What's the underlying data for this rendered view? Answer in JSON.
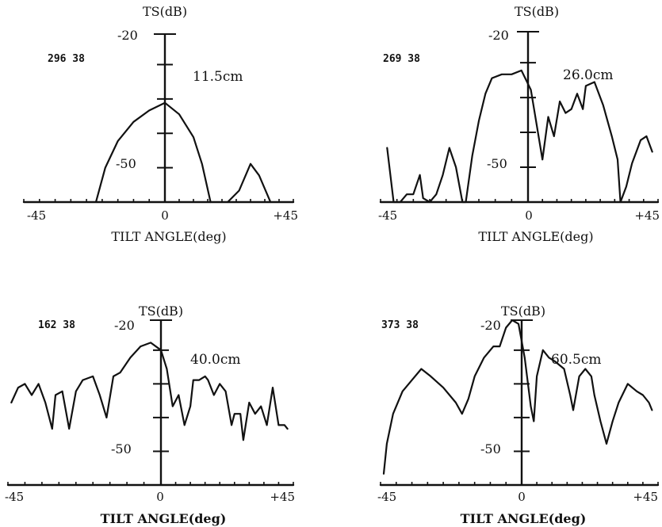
{
  "chart_data": [
    {
      "type": "line",
      "panel": "top-left",
      "ylabel": "TS(dB)",
      "xlabel": "TILT ANGLE(deg)",
      "code": "296 38",
      "size_label": "11.5cm",
      "x_tick_labels": [
        "-45",
        "0",
        "+45"
      ],
      "y_tick_labels": [
        "-20",
        "-50"
      ],
      "xlim": [
        -45,
        45
      ],
      "ylim": [
        -64,
        -20
      ],
      "y_ticks": [
        -20,
        -28,
        -37,
        -46,
        -55
      ],
      "series": [
        {
          "segments": [
            [
              [
                -22,
                -64
              ],
              [
                -19,
                -55
              ],
              [
                -15,
                -48
              ],
              [
                -10,
                -43
              ],
              [
                -5,
                -40
              ],
              [
                0,
                -38
              ],
              [
                5,
                -41
              ],
              [
                10,
                -47
              ],
              [
                13,
                -54
              ],
              [
                16,
                -64
              ]
            ],
            [
              [
                22,
                -64
              ],
              [
                26,
                -61
              ],
              [
                30,
                -54
              ],
              [
                33,
                -57
              ],
              [
                37,
                -64
              ]
            ]
          ]
        }
      ]
    },
    {
      "type": "line",
      "panel": "top-right",
      "ylabel": "TS(dB)",
      "xlabel": "TILT ANGLE(deg)",
      "code": "269 38",
      "size_label": "26.0cm",
      "x_tick_labels": [
        "-45",
        "0",
        "+45"
      ],
      "y_tick_labels": [
        "-20",
        "-50"
      ],
      "xlim": [
        -45,
        45
      ],
      "ylim": [
        -64,
        -20
      ],
      "y_ticks": [
        -20,
        -28,
        -37,
        -46,
        -55
      ],
      "series": [
        {
          "segments": [
            [
              [
                -43,
                -50
              ],
              [
                -41,
                -64
              ],
              [
                -39,
                -64
              ],
              [
                -37,
                -62
              ],
              [
                -35,
                -62
              ],
              [
                -33,
                -57
              ],
              [
                -32,
                -63
              ],
              [
                -30,
                -64
              ],
              [
                -28,
                -62
              ],
              [
                -26,
                -57
              ],
              [
                -24,
                -50
              ],
              [
                -22,
                -55
              ],
              [
                -20,
                -64
              ],
              [
                -19,
                -64
              ],
              [
                -17,
                -52
              ],
              [
                -15,
                -43
              ],
              [
                -13,
                -36
              ],
              [
                -11,
                -32
              ],
              [
                -8,
                -31
              ],
              [
                -5,
                -31
              ],
              [
                -2,
                -30
              ],
              [
                1,
                -35
              ],
              [
                3,
                -44
              ],
              [
                5,
                -53
              ],
              [
                7,
                -42
              ],
              [
                9,
                -47
              ],
              [
                11,
                -38
              ],
              [
                13,
                -41
              ],
              [
                15,
                -40
              ],
              [
                17,
                -36
              ],
              [
                19,
                -40
              ],
              [
                20,
                -34
              ],
              [
                23,
                -33
              ],
              [
                26,
                -39
              ],
              [
                29,
                -47
              ],
              [
                31,
                -53
              ],
              [
                32,
                -64
              ],
              [
                34,
                -60
              ],
              [
                36,
                -54
              ],
              [
                39,
                -48
              ],
              [
                41,
                -47
              ],
              [
                43,
                -51
              ]
            ]
          ]
        }
      ]
    },
    {
      "type": "line",
      "panel": "bottom-left",
      "ylabel": "TS(dB)",
      "xlabel": "TILT ANGLE(deg)",
      "code": "162 38",
      "size_label": "40.0cm",
      "x_tick_labels": [
        "-45",
        "0",
        "+45"
      ],
      "y_tick_labels": [
        "-20",
        "-50"
      ],
      "xlim": [
        -45,
        45
      ],
      "ylim": [
        -64,
        -20
      ],
      "y_ticks": [
        -20,
        -28,
        -37,
        -46,
        -55
      ],
      "series": [
        {
          "segments": [
            [
              [
                -44,
                -42
              ],
              [
                -42,
                -38
              ],
              [
                -40,
                -37
              ],
              [
                -38,
                -40
              ],
              [
                -36,
                -37
              ],
              [
                -34,
                -42
              ],
              [
                -32,
                -49
              ],
              [
                -31,
                -40
              ],
              [
                -29,
                -39
              ],
              [
                -27,
                -49
              ],
              [
                -25,
                -39
              ],
              [
                -23,
                -36
              ],
              [
                -20,
                -35
              ],
              [
                -18,
                -40
              ],
              [
                -16,
                -46
              ],
              [
                -14,
                -35
              ],
              [
                -12,
                -34
              ],
              [
                -9,
                -30
              ],
              [
                -6,
                -27
              ],
              [
                -3,
                -26
              ],
              [
                0,
                -28
              ],
              [
                2,
                -33
              ],
              [
                4,
                -43
              ],
              [
                6,
                -40
              ],
              [
                8,
                -48
              ],
              [
                10,
                -43
              ],
              [
                11,
                -36
              ],
              [
                13,
                -36
              ],
              [
                15,
                -35
              ],
              [
                16,
                -36
              ],
              [
                18,
                -40
              ],
              [
                20,
                -37
              ],
              [
                22,
                -39
              ],
              [
                24,
                -48
              ],
              [
                25,
                -45
              ],
              [
                27,
                -45
              ],
              [
                28,
                -52
              ],
              [
                30,
                -42
              ],
              [
                32,
                -45
              ],
              [
                34,
                -43
              ],
              [
                36,
                -48
              ],
              [
                38,
                -38
              ],
              [
                40,
                -48
              ],
              [
                42,
                -48
              ],
              [
                43,
                -49
              ]
            ]
          ]
        }
      ]
    },
    {
      "type": "line",
      "panel": "bottom-right",
      "ylabel": "TS(dB)",
      "xlabel": "TILT ANGLE(deg)",
      "code": "373 38",
      "size_label": "60.5cm",
      "x_tick_labels": [
        "-45",
        "0",
        "+45"
      ],
      "y_tick_labels": [
        "-20",
        "-50"
      ],
      "xlim": [
        -45,
        45
      ],
      "ylim": [
        -64,
        -20
      ],
      "y_ticks": [
        -20,
        -28,
        -37,
        -46,
        -55
      ],
      "series": [
        {
          "segments": [
            [
              [
                -44,
                -61
              ],
              [
                -43,
                -53
              ],
              [
                -41,
                -45
              ],
              [
                -38,
                -39
              ],
              [
                -35,
                -36
              ],
              [
                -32,
                -33
              ],
              [
                -29,
                -35
              ],
              [
                -25,
                -38
              ],
              [
                -21,
                -42
              ],
              [
                -19,
                -45
              ],
              [
                -17,
                -41
              ],
              [
                -15,
                -35
              ],
              [
                -12,
                -30
              ],
              [
                -9,
                -27
              ],
              [
                -7,
                -27
              ],
              [
                -5,
                -22
              ],
              [
                -3,
                -20
              ],
              [
                -1,
                -21
              ],
              [
                1,
                -30
              ],
              [
                3,
                -43
              ],
              [
                4,
                -47
              ],
              [
                5,
                -35
              ],
              [
                7,
                -28
              ],
              [
                9,
                -30
              ],
              [
                11,
                -31
              ],
              [
                14,
                -33
              ],
              [
                16,
                -40
              ],
              [
                17,
                -44
              ],
              [
                19,
                -35
              ],
              [
                21,
                -33
              ],
              [
                23,
                -35
              ],
              [
                24,
                -40
              ],
              [
                26,
                -47
              ],
              [
                28,
                -53
              ],
              [
                30,
                -47
              ],
              [
                32,
                -42
              ],
              [
                35,
                -37
              ],
              [
                38,
                -39
              ],
              [
                40,
                -40
              ],
              [
                42,
                -42
              ],
              [
                43,
                -44
              ]
            ]
          ]
        }
      ]
    }
  ]
}
